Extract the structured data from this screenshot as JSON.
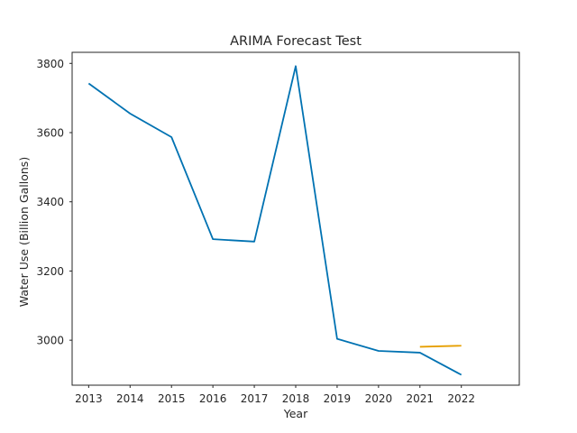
{
  "chart_data": {
    "type": "line",
    "title": "ARIMA Forecast Test",
    "xlabel": "Year",
    "ylabel": "Water Use (Billion Gallons)",
    "x": [
      2013,
      2014,
      2015,
      2016,
      2017,
      2018,
      2019,
      2020,
      2021,
      2022
    ],
    "xticks": [
      "2013",
      "2014",
      "2015",
      "2016",
      "2017",
      "2018",
      "2019",
      "2020",
      "2021",
      "2022"
    ],
    "yticks": [
      "3000",
      "3200",
      "3400",
      "3600",
      "3800"
    ],
    "xlim": [
      2012.6,
      2023.4
    ],
    "ylim": [
      2870,
      3832
    ],
    "grid": false,
    "legend": "none",
    "series": [
      {
        "color": "#0072b2",
        "x": [
          2013,
          2014,
          2015,
          2016,
          2017,
          2018,
          2019,
          2020,
          2021,
          2022
        ],
        "y": [
          3742,
          3655,
          3587,
          3292,
          3285,
          3792,
          3004,
          2969,
          2964,
          2900
        ]
      },
      {
        "color": "#e69f00",
        "x": [
          2021,
          2022
        ],
        "y": [
          2981,
          2984
        ]
      }
    ]
  }
}
